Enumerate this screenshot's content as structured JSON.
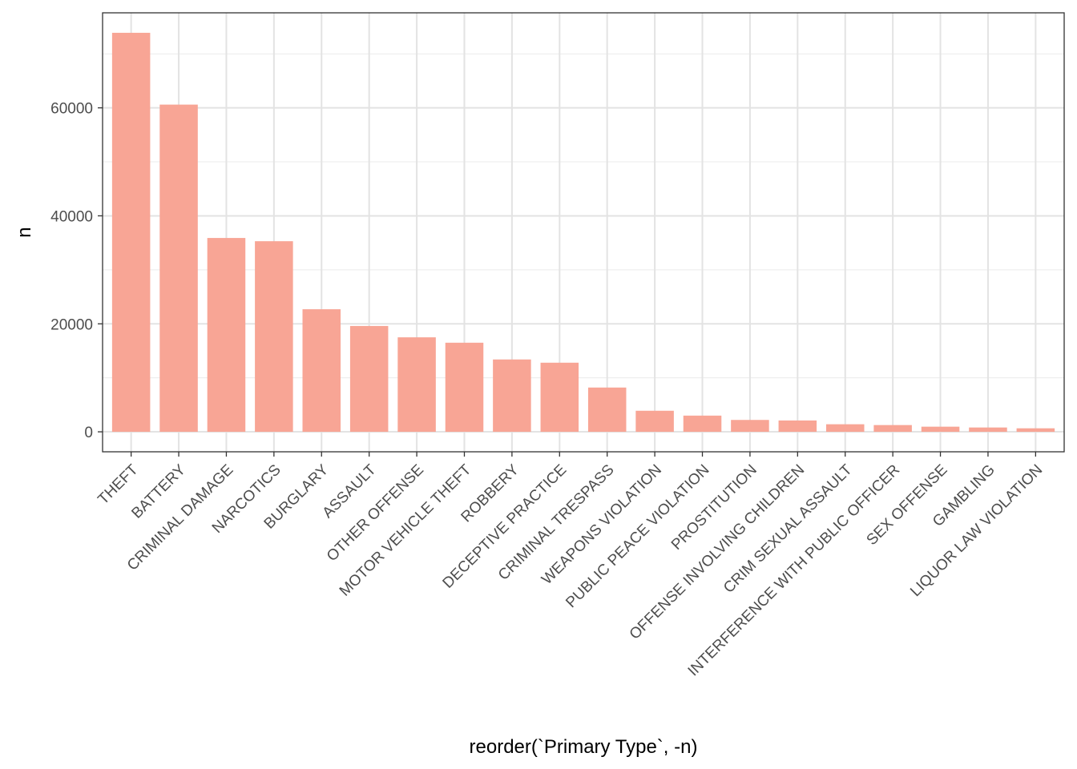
{
  "chart_data": {
    "type": "bar",
    "title": "",
    "xlabel": "reorder(`Primary Type`, -n)",
    "ylabel": "n",
    "categories": [
      "THEFT",
      "BATTERY",
      "CRIMINAL DAMAGE",
      "NARCOTICS",
      "BURGLARY",
      "ASSAULT",
      "OTHER OFFENSE",
      "MOTOR VEHICLE THEFT",
      "ROBBERY",
      "DECEPTIVE PRACTICE",
      "CRIMINAL TRESPASS",
      "WEAPONS VIOLATION",
      "PUBLIC PEACE VIOLATION",
      "PROSTITUTION",
      "OFFENSE INVOLVING CHILDREN",
      "CRIM SEXUAL ASSAULT",
      "INTERFERENCE WITH PUBLIC OFFICER",
      "SEX OFFENSE",
      "GAMBLING",
      "LIQUOR LAW VIOLATION"
    ],
    "values": [
      73900,
      60600,
      35900,
      35300,
      22700,
      19600,
      17500,
      16500,
      13400,
      12800,
      8200,
      3900,
      3000,
      2200,
      2100,
      1400,
      1250,
      950,
      800,
      650
    ],
    "yticks": [
      0,
      20000,
      40000,
      60000
    ],
    "ylim": [
      -3700,
      77600
    ],
    "bar_color": "#f8a595",
    "grid": true,
    "theme": "bw"
  }
}
